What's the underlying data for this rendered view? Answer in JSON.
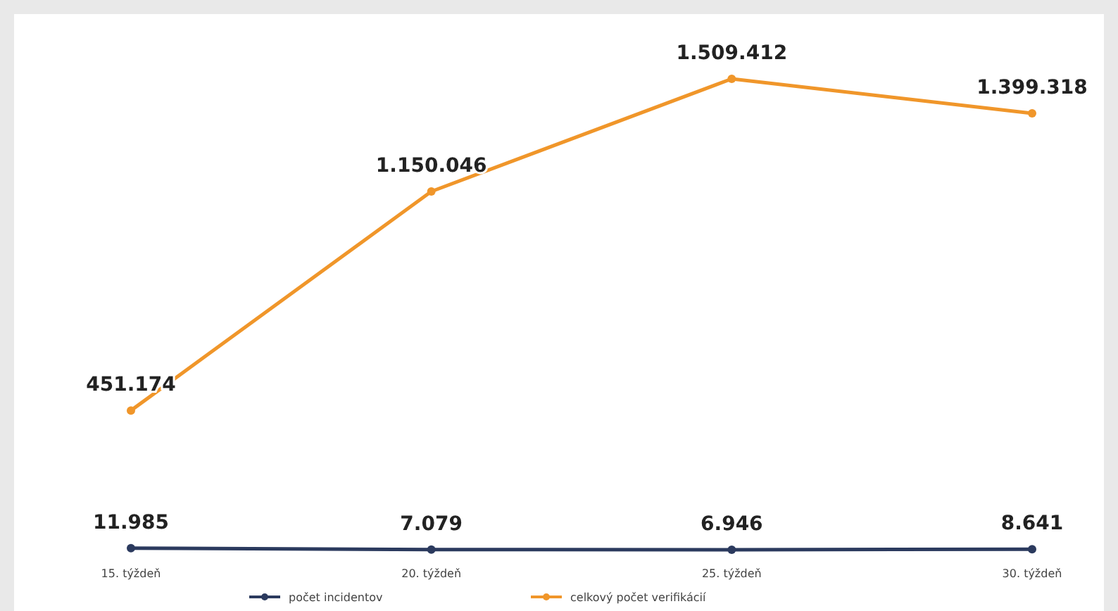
{
  "chart_data": {
    "type": "line",
    "categories": [
      "15. týždeň",
      "20. týždeň",
      "25. týždeň",
      "30. týždeň"
    ],
    "series": [
      {
        "name": "počet incidentov",
        "color": "#2b3a5e",
        "values": [
          11985,
          7079,
          6946,
          8641
        ],
        "value_labels": [
          "11.985",
          "7.079",
          "6.946",
          "8.641"
        ]
      },
      {
        "name": "celkový počet verifikácií",
        "color": "#f0962a",
        "values": [
          451174,
          1150046,
          1509412,
          1399318
        ],
        "value_labels": [
          "451.174",
          "1.150.046",
          "1.509.412",
          "1.399.318"
        ]
      }
    ],
    "marker": "circle",
    "legend": "bottom",
    "tick_labels": "x"
  }
}
